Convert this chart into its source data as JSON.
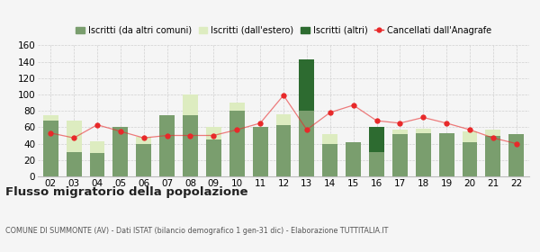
{
  "years": [
    "02",
    "03",
    "04",
    "05",
    "06",
    "07",
    "08",
    "09",
    "10",
    "11",
    "12",
    "13",
    "14",
    "15",
    "16",
    "17",
    "18",
    "19",
    "20",
    "21",
    "22"
  ],
  "iscritti_altri_comuni": [
    68,
    30,
    29,
    60,
    40,
    75,
    75,
    45,
    80,
    60,
    63,
    80,
    40,
    42,
    30,
    52,
    53,
    53,
    42,
    49,
    52
  ],
  "iscritti_estero": [
    7,
    38,
    14,
    0,
    8,
    0,
    25,
    15,
    10,
    0,
    13,
    0,
    12,
    0,
    10,
    5,
    5,
    0,
    13,
    8,
    0
  ],
  "iscritti_altri": [
    0,
    0,
    0,
    0,
    0,
    0,
    0,
    0,
    0,
    0,
    0,
    63,
    0,
    0,
    30,
    0,
    0,
    0,
    0,
    0,
    0
  ],
  "cancellati": [
    53,
    47,
    63,
    55,
    47,
    50,
    50,
    50,
    57,
    65,
    99,
    57,
    78,
    87,
    68,
    65,
    72,
    65,
    57,
    47,
    40
  ],
  "color_altri_comuni": "#7a9e6e",
  "color_estero": "#ddecc0",
  "color_altri": "#2d6b30",
  "color_cancellati": "#e8292a",
  "title": "Flusso migratorio della popolazione",
  "subtitle": "COMUNE DI SUMMONTE (AV) - Dati ISTAT (bilancio demografico 1 gen-31 dic) - Elaborazione TUTTITALIA.IT",
  "legend_labels": [
    "Iscritti (da altri comuni)",
    "Iscritti (dall'estero)",
    "Iscritti (altri)",
    "Cancellati dall'Anagrafe"
  ],
  "ylim": [
    0,
    160
  ],
  "yticks": [
    0,
    20,
    40,
    60,
    80,
    100,
    120,
    140,
    160
  ],
  "background_color": "#f5f5f5",
  "grid_color": "#d0d0d0"
}
